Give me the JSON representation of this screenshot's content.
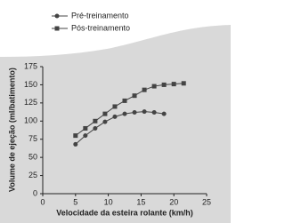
{
  "chart_data": {
    "type": "line",
    "x_label": "Velocidade da esteira rolante (km/h)",
    "y_label": "Volume de ejeção (ml/batimento)",
    "xlim": [
      0,
      25
    ],
    "xticks": [
      0,
      5,
      10,
      15,
      20,
      25
    ],
    "ylim": [
      0,
      175
    ],
    "yticks": [
      0,
      25,
      50,
      75,
      100,
      125,
      150,
      175
    ],
    "legend": "top-left",
    "series": [
      {
        "name": "Pré-treinamento",
        "color": "#444444",
        "marker": "circle",
        "x": [
          5,
          6.5,
          8,
          9.5,
          11,
          12.5,
          14,
          15.5,
          17,
          18.5
        ],
        "values": [
          68,
          80,
          90,
          99,
          106,
          110,
          112,
          113,
          112,
          110
        ]
      },
      {
        "name": "Pós-treinamento",
        "color": "#444444",
        "marker": "square",
        "x": [
          5,
          6.5,
          8,
          9.5,
          11,
          12.5,
          14,
          15.5,
          17,
          18.5,
          20,
          21.5
        ],
        "values": [
          80,
          90,
          100,
          110,
          120,
          128,
          135,
          143,
          148,
          150,
          151,
          152
        ]
      }
    ]
  }
}
